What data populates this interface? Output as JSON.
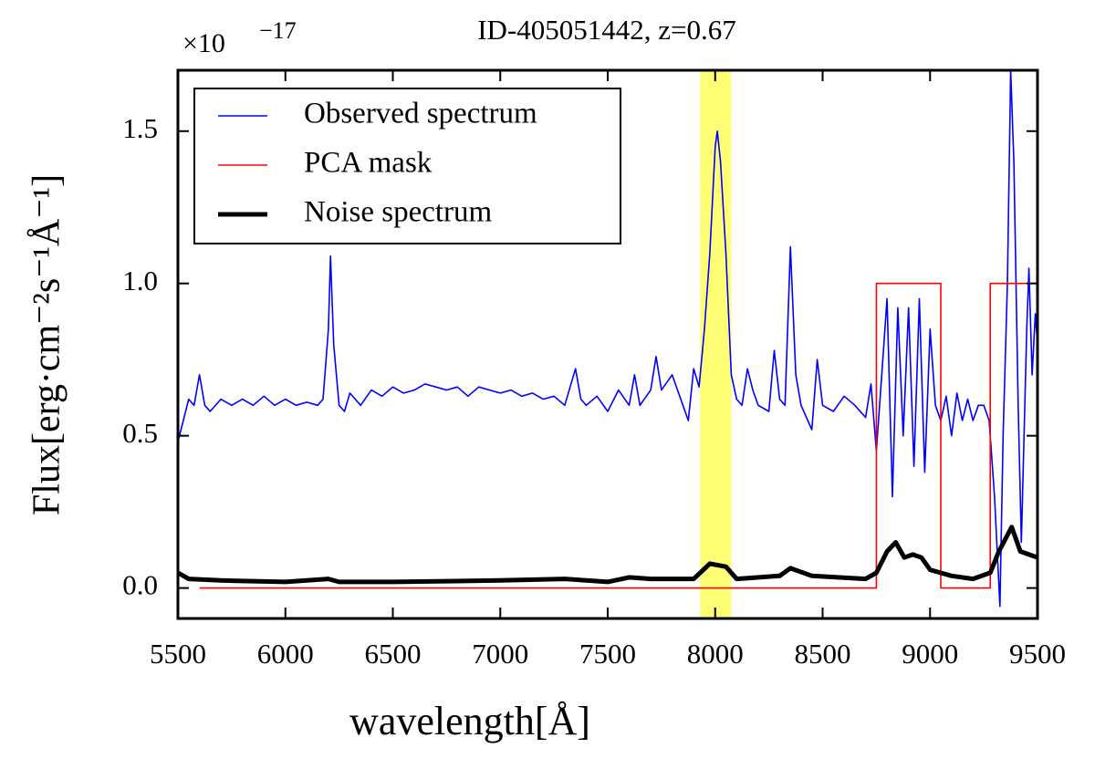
{
  "chart_data": {
    "type": "line",
    "title": "ID-405051442, z=0.67",
    "xlabel": "wavelength[Å]",
    "ylabel": "Flux[erg·cm⁻²s⁻¹Å⁻¹]",
    "y_offset": {
      "base": "×10",
      "exponent": "−17"
    },
    "xlim": [
      5500,
      9500
    ],
    "ylim": [
      -0.1,
      1.7
    ],
    "xticks": [
      5500,
      6000,
      6500,
      7000,
      7500,
      8000,
      8500,
      9000,
      9500
    ],
    "yticks": [
      {
        "value": 0,
        "label": "0.0"
      },
      0.5,
      {
        "value": 1,
        "label": "1.0"
      },
      1.5
    ],
    "highlight": {
      "range": [
        7930,
        8075
      ],
      "color": "#ffff66"
    },
    "legend": "upper left",
    "grid": false,
    "series": [
      {
        "name": "Observed spectrum",
        "color": "#0000ff",
        "linewidth": 1.6,
        "x": [
          5500,
          5525,
          5550,
          5575,
          5600,
          5625,
          5650,
          5700,
          5750,
          5800,
          5850,
          5900,
          5950,
          6000,
          6050,
          6100,
          6150,
          6175,
          6200,
          6210,
          6225,
          6250,
          6275,
          6300,
          6350,
          6400,
          6450,
          6500,
          6550,
          6600,
          6650,
          6700,
          6750,
          6800,
          6850,
          6900,
          6950,
          7000,
          7050,
          7100,
          7150,
          7200,
          7250,
          7300,
          7350,
          7375,
          7400,
          7450,
          7500,
          7550,
          7600,
          7625,
          7650,
          7700,
          7725,
          7750,
          7800,
          7850,
          7875,
          7900,
          7925,
          7950,
          7975,
          8000,
          8010,
          8025,
          8050,
          8075,
          8100,
          8125,
          8150,
          8175,
          8200,
          8250,
          8275,
          8300,
          8325,
          8350,
          8375,
          8400,
          8450,
          8475,
          8500,
          8550,
          8600,
          8650,
          8700,
          8725,
          8750,
          8775,
          8800,
          8825,
          8850,
          8875,
          8900,
          8925,
          8950,
          8975,
          9000,
          9025,
          9050,
          9075,
          9100,
          9125,
          9150,
          9175,
          9200,
          9225,
          9250,
          9275,
          9300,
          9325,
          9340,
          9360,
          9375,
          9390,
          9410,
          9425,
          9450,
          9460,
          9475,
          9490,
          9500
        ],
        "values": [
          0.48,
          0.55,
          0.62,
          0.6,
          0.7,
          0.6,
          0.58,
          0.62,
          0.6,
          0.62,
          0.6,
          0.63,
          0.6,
          0.62,
          0.6,
          0.61,
          0.6,
          0.62,
          0.85,
          1.09,
          0.8,
          0.6,
          0.58,
          0.64,
          0.6,
          0.65,
          0.63,
          0.66,
          0.64,
          0.65,
          0.67,
          0.66,
          0.65,
          0.66,
          0.63,
          0.66,
          0.65,
          0.64,
          0.65,
          0.63,
          0.64,
          0.62,
          0.63,
          0.6,
          0.72,
          0.62,
          0.6,
          0.63,
          0.58,
          0.65,
          0.6,
          0.7,
          0.6,
          0.65,
          0.76,
          0.65,
          0.7,
          0.6,
          0.55,
          0.72,
          0.66,
          0.85,
          1.1,
          1.45,
          1.5,
          1.4,
          1.1,
          0.7,
          0.62,
          0.6,
          0.72,
          0.65,
          0.6,
          0.58,
          0.78,
          0.62,
          0.6,
          1.12,
          0.7,
          0.6,
          0.52,
          0.75,
          0.6,
          0.58,
          0.63,
          0.6,
          0.56,
          0.67,
          0.45,
          0.7,
          0.95,
          0.3,
          0.92,
          0.5,
          0.92,
          0.4,
          0.95,
          0.38,
          0.85,
          0.6,
          0.55,
          0.63,
          0.5,
          0.64,
          0.55,
          0.62,
          0.55,
          0.6,
          0.6,
          0.55,
          0.3,
          -0.06,
          0.5,
          1.0,
          1.7,
          1.4,
          0.6,
          0.15,
          0.85,
          1.05,
          0.7,
          0.9,
          0.8
        ]
      },
      {
        "name": "PCA mask",
        "color": "#ff0000",
        "linewidth": 1.6,
        "x": [
          5600,
          8750,
          8750,
          9050,
          9050,
          9280,
          9280,
          9500
        ],
        "values": [
          0,
          0,
          1,
          1,
          0,
          0,
          1,
          1
        ]
      },
      {
        "name": "Noise spectrum",
        "color": "#000000",
        "linewidth": 5,
        "x": [
          5500,
          5550,
          5700,
          6000,
          6200,
          6250,
          6500,
          7000,
          7300,
          7500,
          7600,
          7700,
          7900,
          7975,
          8050,
          8100,
          8300,
          8350,
          8450,
          8700,
          8750,
          8800,
          8840,
          8880,
          8920,
          8960,
          9000,
          9100,
          9200,
          9280,
          9320,
          9380,
          9420,
          9500
        ],
        "values": [
          0.05,
          0.03,
          0.025,
          0.02,
          0.03,
          0.02,
          0.02,
          0.025,
          0.03,
          0.02,
          0.035,
          0.03,
          0.03,
          0.08,
          0.07,
          0.03,
          0.04,
          0.065,
          0.04,
          0.03,
          0.05,
          0.12,
          0.15,
          0.1,
          0.11,
          0.1,
          0.06,
          0.04,
          0.03,
          0.05,
          0.12,
          0.2,
          0.12,
          0.1
        ]
      }
    ]
  }
}
